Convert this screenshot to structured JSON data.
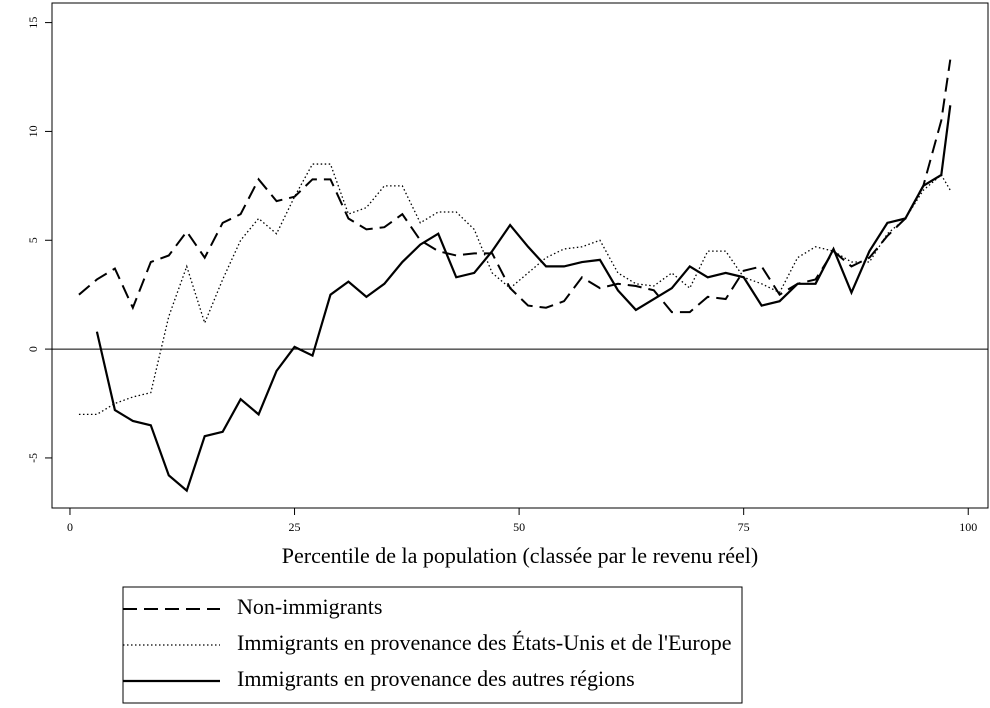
{
  "chart_data": {
    "type": "line",
    "xlabel": "Percentile de la population (classée par le revenu réel)",
    "x": [
      1,
      3,
      5,
      7,
      9,
      11,
      13,
      15,
      17,
      19,
      21,
      23,
      25,
      27,
      29,
      31,
      33,
      35,
      37,
      39,
      41,
      43,
      45,
      47,
      49,
      51,
      53,
      55,
      57,
      59,
      61,
      63,
      65,
      67,
      69,
      71,
      73,
      75,
      77,
      79,
      81,
      83,
      85,
      87,
      89,
      91,
      93,
      95,
      97,
      98
    ],
    "series": [
      {
        "name": "Non-immigrants",
        "color": "#000000",
        "dash": "dashed",
        "values": [
          2.5,
          3.2,
          3.7,
          1.9,
          4.0,
          4.3,
          5.4,
          4.2,
          5.8,
          6.2,
          7.8,
          6.8,
          7.0,
          7.8,
          7.8,
          6.0,
          5.5,
          5.6,
          6.2,
          5.0,
          4.5,
          4.3,
          4.4,
          4.4,
          2.8,
          2.0,
          1.9,
          2.2,
          3.3,
          2.8,
          3.0,
          2.9,
          2.7,
          1.7,
          1.7,
          2.4,
          2.3,
          3.6,
          3.8,
          2.5,
          3.0,
          3.2,
          4.5,
          3.8,
          4.2,
          5.2,
          6.0,
          7.5,
          10.5,
          13.3
        ]
      },
      {
        "name": "Immigrants en provenance des États-Unis et de l'Europe",
        "color": "#000000",
        "dash": "dotted",
        "values": [
          -3.0,
          -3.0,
          -2.5,
          -2.2,
          -2.0,
          1.5,
          3.8,
          1.2,
          3.2,
          5.0,
          6.0,
          5.3,
          7.0,
          8.5,
          8.5,
          6.2,
          6.5,
          7.5,
          7.5,
          5.8,
          6.3,
          6.3,
          5.5,
          3.5,
          2.8,
          3.5,
          4.2,
          4.6,
          4.7,
          5.0,
          3.5,
          3.0,
          2.9,
          3.5,
          2.8,
          4.5,
          4.5,
          3.3,
          3.0,
          2.6,
          4.2,
          4.7,
          4.5,
          4.0,
          4.0,
          5.3,
          6.0,
          7.3,
          8.0,
          7.3
        ]
      },
      {
        "name": "Immigrants en provenance des autres régions",
        "color": "#000000",
        "dash": "solid",
        "values": [
          null,
          0.8,
          -2.8,
          -3.3,
          -3.5,
          -5.8,
          -6.5,
          -4.0,
          -3.8,
          -2.3,
          -3.0,
          -1.0,
          0.1,
          -0.3,
          2.5,
          3.1,
          2.4,
          3.0,
          4.0,
          4.8,
          5.3,
          3.3,
          3.5,
          4.5,
          5.7,
          4.7,
          3.8,
          3.8,
          4.0,
          4.1,
          2.7,
          1.8,
          2.3,
          2.8,
          3.8,
          3.3,
          3.5,
          3.3,
          2.0,
          2.2,
          3.0,
          3.0,
          4.6,
          2.6,
          4.5,
          5.8,
          6.0,
          7.5,
          8.0,
          11.2
        ]
      }
    ],
    "xlim": [
      -2,
      102.2
    ],
    "ylim": [
      -7.3,
      15.9
    ],
    "xticks": [
      0,
      25,
      50,
      75,
      100
    ],
    "yticks": [
      -5,
      0,
      5,
      10,
      15
    ],
    "reference_line": 0
  }
}
